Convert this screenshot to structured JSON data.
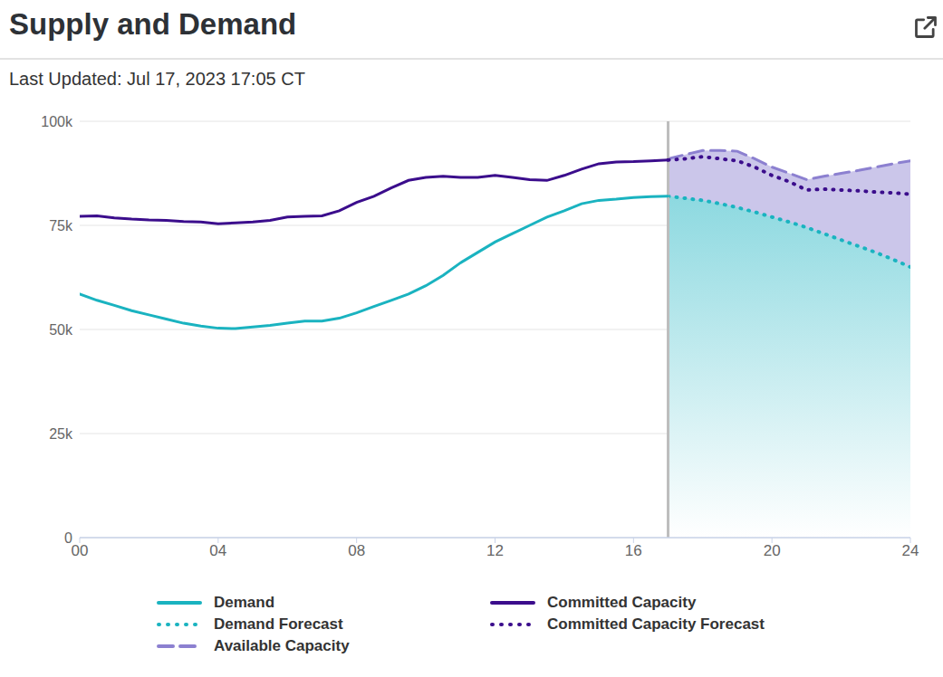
{
  "chart_data": {
    "type": "line",
    "title": "Supply and Demand",
    "subtitle": "Last Updated: Jul 17, 2023 17:05 CT",
    "x": [
      0,
      0.5,
      1,
      1.5,
      2,
      2.5,
      3,
      3.5,
      4,
      4.5,
      5,
      5.5,
      6,
      6.5,
      7,
      7.5,
      8,
      8.5,
      9,
      9.5,
      10,
      10.5,
      11,
      11.5,
      12,
      12.5,
      13,
      13.5,
      14,
      14.5,
      15,
      15.5,
      16,
      16.5,
      17,
      17.5,
      18,
      18.5,
      19,
      19.5,
      20,
      20.5,
      21,
      21.5,
      22,
      22.5,
      23,
      23.5,
      24
    ],
    "xlim": [
      0,
      24
    ],
    "xticks": [
      {
        "value": 0,
        "label": "00"
      },
      {
        "value": 4,
        "label": "04"
      },
      {
        "value": 8,
        "label": "08"
      },
      12,
      16,
      20,
      24
    ],
    "ylim": [
      0,
      100000
    ],
    "yticks": [
      0,
      {
        "value": 25000,
        "label": "25k"
      },
      {
        "value": 50000,
        "label": "50k"
      },
      {
        "value": 75000,
        "label": "75k"
      },
      {
        "value": 100000,
        "label": "100k"
      }
    ],
    "grid": true,
    "legend": "bottom",
    "series": [
      {
        "name": "Demand",
        "type": "line",
        "line_style": "solid",
        "color": "#1ab3c0",
        "values": [
          58500,
          57000,
          55800,
          54500,
          53500,
          52500,
          51500,
          50800,
          50300,
          50200,
          50600,
          51000,
          51500,
          52000,
          52000,
          52700,
          54000,
          55500,
          57000,
          58500,
          60500,
          63000,
          66000,
          68500,
          71000,
          73000,
          75000,
          77000,
          78500,
          80200,
          81000,
          81300,
          81700,
          81900,
          82000,
          null,
          null,
          null,
          null,
          null,
          null,
          null,
          null,
          null,
          null,
          null,
          null,
          null,
          null
        ]
      },
      {
        "name": "Demand Forecast",
        "type": "area",
        "line_style": "dotted",
        "color": "#1ab3c0",
        "values": [
          null,
          null,
          null,
          null,
          null,
          null,
          null,
          null,
          null,
          null,
          null,
          null,
          null,
          null,
          null,
          null,
          null,
          null,
          null,
          null,
          null,
          null,
          null,
          null,
          null,
          null,
          null,
          null,
          null,
          null,
          null,
          null,
          null,
          null,
          82000,
          81500,
          81000,
          80200,
          79300,
          78200,
          77000,
          75800,
          74500,
          73000,
          71500,
          70000,
          68500,
          66800,
          65000
        ]
      },
      {
        "name": "Available Capacity",
        "type": "area",
        "line_style": "dashed",
        "color": "#8c80d0",
        "values": [
          null,
          null,
          null,
          null,
          null,
          null,
          null,
          null,
          null,
          null,
          null,
          null,
          null,
          null,
          null,
          null,
          null,
          null,
          null,
          null,
          null,
          null,
          null,
          null,
          null,
          null,
          null,
          null,
          null,
          null,
          null,
          null,
          null,
          null,
          91000,
          92000,
          93000,
          93000,
          92800,
          91000,
          89000,
          87500,
          86000,
          86800,
          87500,
          88200,
          89000,
          89800,
          90500
        ]
      },
      {
        "name": "Committed Capacity",
        "type": "line",
        "line_style": "solid",
        "color": "#3b0d8c",
        "values": [
          77200,
          77300,
          76800,
          76500,
          76300,
          76200,
          75900,
          75800,
          75400,
          75600,
          75800,
          76200,
          77000,
          77200,
          77300,
          78500,
          80500,
          82000,
          84000,
          85800,
          86500,
          86800,
          86500,
          86500,
          87000,
          86500,
          86000,
          85800,
          87000,
          88500,
          89800,
          90200,
          90300,
          90500,
          90700,
          null,
          null,
          null,
          null,
          null,
          null,
          null,
          null,
          null,
          null,
          null,
          null,
          null,
          null
        ]
      },
      {
        "name": "Committed Capacity Forecast",
        "type": "line",
        "line_style": "dotted",
        "color": "#3b0d8c",
        "values": [
          null,
          null,
          null,
          null,
          null,
          null,
          null,
          null,
          null,
          null,
          null,
          null,
          null,
          null,
          null,
          null,
          null,
          null,
          null,
          null,
          null,
          null,
          null,
          null,
          null,
          null,
          null,
          null,
          null,
          null,
          null,
          null,
          null,
          null,
          90700,
          91000,
          91500,
          91000,
          90500,
          89000,
          87000,
          85500,
          83500,
          83700,
          83500,
          83300,
          83000,
          82800,
          82500
        ]
      }
    ]
  }
}
